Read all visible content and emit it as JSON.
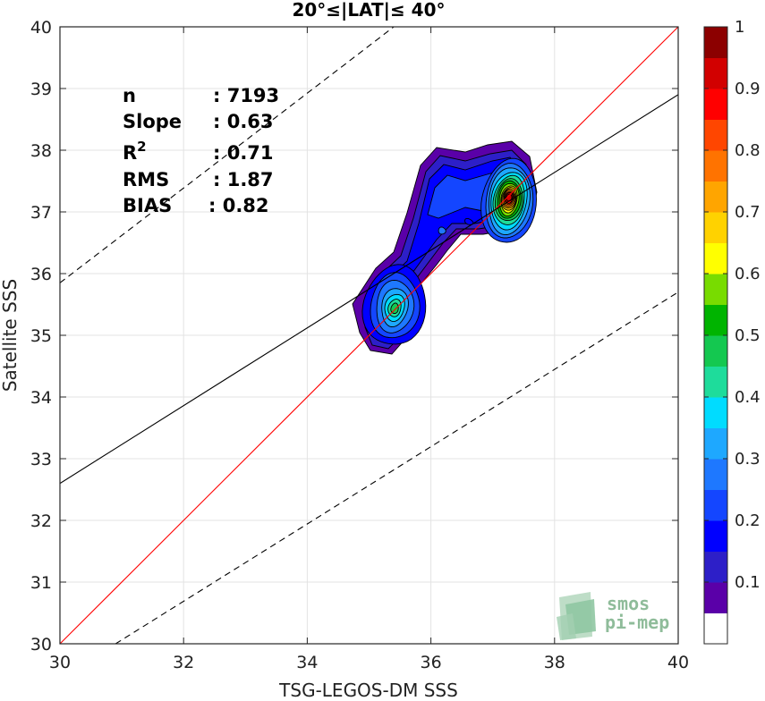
{
  "chart_data": {
    "type": "heatmap",
    "title": "20°≤|LAT|≤ 40°",
    "xlabel": "TSG-LEGOS-DM SSS",
    "ylabel": "Satellite SSS",
    "xlim": [
      30,
      40
    ],
    "ylim": [
      30,
      40
    ],
    "xticks": [
      30,
      32,
      34,
      36,
      38,
      40
    ],
    "yticks": [
      30,
      31,
      32,
      33,
      34,
      35,
      36,
      37,
      38,
      39,
      40
    ],
    "grid": true,
    "stats": [
      {
        "label": "n",
        "value": ": 7193"
      },
      {
        "label": "Slope",
        "value": ": 0.63"
      },
      {
        "label": "R",
        "sup": "2",
        "value": ": 0.71"
      },
      {
        "label": "RMS",
        "value": ": 1.87"
      },
      {
        "label": "BIAS",
        "value": ": 0.82"
      }
    ],
    "lines": [
      {
        "kind": "identity",
        "color": "#ff0000",
        "style": "solid",
        "points": [
          [
            30,
            30
          ],
          [
            40,
            40
          ]
        ]
      },
      {
        "kind": "regression",
        "color": "#000000",
        "style": "solid",
        "points": [
          [
            30,
            32.6
          ],
          [
            40,
            38.9
          ]
        ]
      },
      {
        "kind": "upper-bound",
        "color": "#000000",
        "style": "dashed",
        "points": [
          [
            30,
            35.85
          ],
          [
            35.4,
            40
          ]
        ]
      },
      {
        "kind": "lower-bound",
        "color": "#000000",
        "style": "dashed",
        "points": [
          [
            30.9,
            30
          ],
          [
            40,
            35.7
          ]
        ]
      }
    ],
    "density_peaks": [
      {
        "x": 37.25,
        "y": 37.2,
        "peak": 1.0
      },
      {
        "x": 35.4,
        "y": 35.45,
        "peak": 0.65
      }
    ],
    "colorbar": {
      "range": [
        0,
        1
      ],
      "ticks": [
        "0.1",
        "0.2",
        "0.3",
        "0.4",
        "0.5",
        "0.6",
        "0.7",
        "0.8",
        "0.9",
        "1"
      ],
      "levels": [
        "#ffffff",
        "#5a00a8",
        "#2d1fc8",
        "#0000ff",
        "#1446ff",
        "#1e78ff",
        "#1ea8ff",
        "#00dcff",
        "#1edc9b",
        "#14c850",
        "#00b400",
        "#78dc00",
        "#ffff00",
        "#ffd200",
        "#ffa500",
        "#ff7300",
        "#ff4600",
        "#ff0000",
        "#d20000",
        "#8c0000"
      ]
    },
    "logo": {
      "line1": "smos",
      "line2": "pi-mep"
    }
  }
}
